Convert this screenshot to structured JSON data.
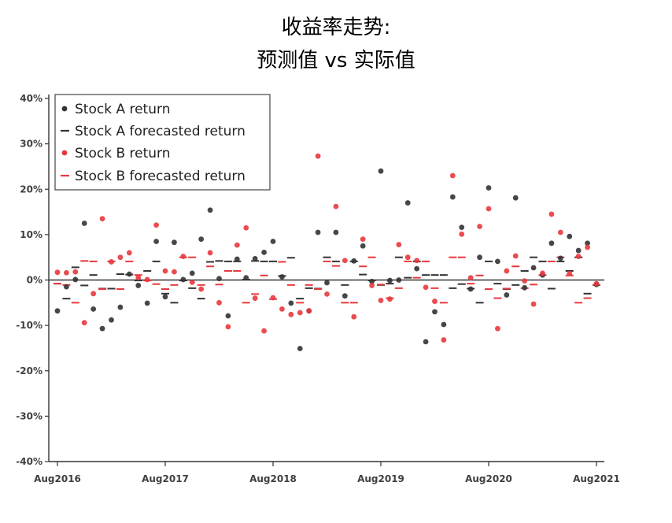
{
  "chart_data": {
    "type": "scatter",
    "title": [
      "收益率走势:",
      "预测值 vs 实际值"
    ],
    "xlabel": "",
    "ylabel": "",
    "ylim": [
      -40,
      40
    ],
    "y_ticks": [
      40,
      30,
      20,
      10,
      0,
      -10,
      -20,
      -30,
      -40
    ],
    "y_tick_labels": [
      "40%",
      "30%",
      "20%",
      "10%",
      "0%",
      "-10%",
      "-20%",
      "-30%",
      "-40%"
    ],
    "xlim": [
      0,
      60
    ],
    "x_ticks": [
      0,
      12,
      24,
      36,
      48,
      60
    ],
    "x_tick_labels": [
      "Aug2016",
      "Aug2017",
      "Aug2018",
      "Aug2019",
      "Aug2020",
      "Aug2021"
    ],
    "zero_line": true,
    "grid": false,
    "legend_position": "top-left",
    "colors": {
      "stock_a": "#333333",
      "stock_b": "#e8383d",
      "axis": "#333333",
      "zero_line": "#333333"
    },
    "series": [
      {
        "name": "Stock A return",
        "marker": "dot",
        "color": "#333333",
        "x": [
          0,
          1,
          2,
          3,
          4,
          5,
          6,
          7,
          8,
          9,
          10,
          11,
          12,
          13,
          14,
          15,
          16,
          17,
          18,
          19,
          20,
          21,
          22,
          23,
          24,
          25,
          26,
          27,
          28,
          29,
          30,
          31,
          32,
          33,
          34,
          35,
          36,
          37,
          38,
          39,
          40,
          41,
          42,
          43,
          44,
          45,
          46,
          47,
          48,
          49,
          50,
          51,
          52,
          53,
          54,
          55,
          56,
          57,
          58,
          59,
          60
        ],
        "values": [
          -6.8,
          -1.5,
          0.1,
          12.5,
          -6.4,
          -10.7,
          -8.8,
          -6.0,
          1.3,
          -1.2,
          -5.1,
          8.5,
          -3.7,
          8.3,
          0.1,
          1.5,
          9.0,
          15.4,
          0.3,
          -7.9,
          4.6,
          0.5,
          4.7,
          6.1,
          8.5,
          0.7,
          -5.1,
          -15.1,
          -6.8,
          10.5,
          -0.6,
          10.5,
          -3.5,
          4.2,
          7.5,
          -0.3,
          24.0,
          -0.1,
          0.0,
          17.0,
          2.5,
          -13.6,
          -7.0,
          -9.8,
          18.3,
          11.6,
          -2.0,
          5.0,
          20.3,
          4.1,
          -3.3,
          18.1,
          -1.7,
          2.7,
          1.1,
          8.1,
          4.8,
          9.6,
          6.5,
          8.1,
          -1.0
        ]
      },
      {
        "name": "Stock A forecasted return",
        "marker": "dash",
        "color": "#333333",
        "x": [
          0,
          1,
          2,
          3,
          4,
          5,
          6,
          7,
          8,
          9,
          10,
          11,
          12,
          13,
          14,
          15,
          16,
          17,
          18,
          19,
          20,
          21,
          22,
          23,
          24,
          25,
          26,
          27,
          28,
          29,
          30,
          31,
          32,
          33,
          34,
          35,
          36,
          37,
          38,
          39,
          40,
          41,
          42,
          43,
          44,
          45,
          46,
          47,
          48,
          49,
          50,
          51,
          52,
          53,
          54,
          55,
          56,
          57,
          58,
          59,
          60
        ],
        "values": [
          -0.8,
          -4.1,
          2.8,
          -1.2,
          1.1,
          -1.9,
          -1.9,
          1.3,
          1.2,
          -0.1,
          2.0,
          4.1,
          -3.0,
          -5.0,
          -0.1,
          -1.8,
          -4.1,
          4.0,
          4.2,
          4.1,
          4.1,
          0.1,
          4.2,
          4.1,
          4.1,
          0.9,
          4.9,
          -4.1,
          -1.8,
          -1.9,
          5.0,
          4.1,
          -1.1,
          4.1,
          1.2,
          -0.1,
          -1.1,
          -0.8,
          5.0,
          0.5,
          4.1,
          1.1,
          1.1,
          1.1,
          -1.8,
          -0.9,
          -1.9,
          -5.0,
          4.1,
          -0.8,
          -2.0,
          -1.1,
          2.0,
          5.0,
          4.1,
          -1.9,
          4.1,
          2.0,
          5.0,
          -3.0,
          -1.1
        ]
      },
      {
        "name": "Stock B return",
        "marker": "dot",
        "color": "#e8383d",
        "x": [
          0,
          1,
          2,
          3,
          4,
          5,
          6,
          7,
          8,
          9,
          10,
          11,
          12,
          13,
          14,
          15,
          16,
          17,
          18,
          19,
          20,
          21,
          22,
          23,
          24,
          25,
          26,
          27,
          28,
          29,
          30,
          31,
          32,
          33,
          34,
          35,
          36,
          37,
          38,
          39,
          40,
          41,
          42,
          43,
          44,
          45,
          46,
          47,
          48,
          49,
          50,
          51,
          52,
          53,
          54,
          55,
          56,
          57,
          58,
          59,
          60
        ],
        "values": [
          1.7,
          1.6,
          1.8,
          -9.4,
          -3.0,
          13.5,
          4.0,
          5.0,
          6.0,
          0.5,
          0.1,
          12.1,
          2.0,
          1.8,
          5.2,
          -0.5,
          -2.0,
          6.0,
          -5.0,
          -10.3,
          7.7,
          11.5,
          -4.0,
          -11.2,
          -3.9,
          -6.4,
          -7.6,
          -7.2,
          -6.8,
          27.3,
          -3.1,
          16.2,
          4.3,
          -8.1,
          9.0,
          -1.2,
          -4.5,
          -4.2,
          7.8,
          5.0,
          4.3,
          -1.6,
          -4.7,
          -13.2,
          23.0,
          10.1,
          0.5,
          11.8,
          15.7,
          -10.7,
          2.0,
          5.3,
          -0.2,
          -5.3,
          1.5,
          14.5,
          10.5,
          1.4,
          5.2,
          7.2,
          -0.8
        ]
      },
      {
        "name": "Stock B forecasted return",
        "marker": "dash",
        "color": "#e8383d",
        "x": [
          0,
          1,
          2,
          3,
          4,
          5,
          6,
          7,
          8,
          9,
          10,
          11,
          12,
          13,
          14,
          15,
          16,
          17,
          18,
          19,
          20,
          21,
          22,
          23,
          24,
          25,
          26,
          27,
          28,
          29,
          30,
          31,
          32,
          33,
          34,
          35,
          36,
          37,
          38,
          39,
          40,
          41,
          42,
          43,
          44,
          45,
          46,
          47,
          48,
          49,
          50,
          51,
          52,
          53,
          54,
          55,
          56,
          57,
          58,
          59,
          60
        ],
        "values": [
          -0.8,
          -1.1,
          -5.0,
          4.2,
          4.1,
          -2.0,
          4.1,
          -2.0,
          4.1,
          1.1,
          -0.1,
          -0.9,
          -2.0,
          -1.1,
          5.0,
          5.0,
          -1.1,
          3.0,
          -1.0,
          2.0,
          2.0,
          -5.0,
          -3.1,
          1.0,
          -4.2,
          4.0,
          -1.1,
          -5.0,
          -1.1,
          -2.0,
          4.1,
          3.1,
          -5.0,
          -5.0,
          3.0,
          5.0,
          -1.0,
          -4.0,
          -1.8,
          4.1,
          0.5,
          4.1,
          -1.8,
          -5.0,
          5.0,
          5.0,
          -0.8,
          1.0,
          -2.0,
          -4.0,
          -1.9,
          3.0,
          -1.8,
          -1.0,
          1.1,
          4.1,
          5.0,
          1.0,
          -5.0,
          -4.0,
          -1.1
        ]
      }
    ]
  }
}
